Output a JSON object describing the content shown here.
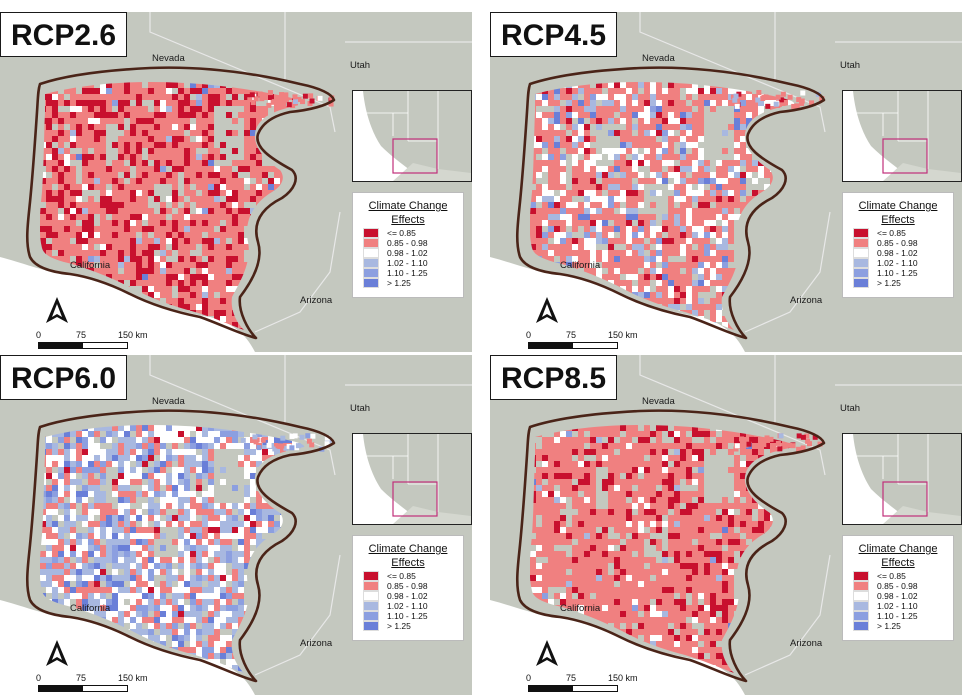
{
  "panels": [
    {
      "scenario": "RCP2.6",
      "palette": [
        0.28,
        0.62,
        0.05,
        0.03,
        0.01,
        0.01
      ]
    },
    {
      "scenario": "RCP4.5",
      "palette": [
        0.06,
        0.55,
        0.22,
        0.1,
        0.04,
        0.03
      ]
    },
    {
      "scenario": "RCP6.0",
      "palette": [
        0.02,
        0.22,
        0.3,
        0.28,
        0.1,
        0.08
      ]
    },
    {
      "scenario": "RCP8.5",
      "palette": [
        0.18,
        0.74,
        0.05,
        0.02,
        0.005,
        0.005
      ]
    }
  ],
  "state_labels": {
    "nevada": "Nevada",
    "utah": "Utah",
    "california": "California",
    "arizona": "Arizona"
  },
  "legend": {
    "title_line1": "Climate Change",
    "title_line2": "Effects",
    "classes": [
      {
        "label": "<= 0.85",
        "color": "#c8102e"
      },
      {
        "label": "0.85 - 0.98",
        "color": "#f08080"
      },
      {
        "label": "0.98 - 1.02",
        "color": "#ffffff"
      },
      {
        "label": "1.02 - 1.10",
        "color": "#a8b8e0"
      },
      {
        "label": "1.10 - 1.25",
        "color": "#8c9fe0"
      },
      {
        "label": "> 1.25",
        "color": "#6a7fd8"
      }
    ]
  },
  "scale": {
    "zero": "0",
    "mid": "75",
    "end": "150 km"
  },
  "colors": {
    "background": "#c4c8bf",
    "ocean": "#ffffff",
    "boundary": "#4a2418",
    "inset_box": "#c0307a"
  }
}
